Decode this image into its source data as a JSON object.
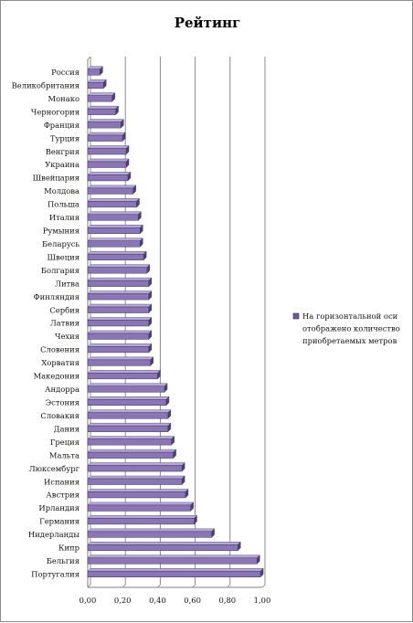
{
  "chart_data": {
    "type": "bar",
    "orientation": "horizontal",
    "title": "Рейтинг",
    "categories": [
      "Россия",
      "Великобритания",
      "Монако",
      "Черногория",
      "Франция",
      "Турция",
      "Венгрия",
      "Украина",
      "Швейцария",
      "Молдова",
      "Польша",
      "Италия",
      "Румыния",
      "Беларусь",
      "Швеция",
      "Болгария",
      "Литва",
      "Финляндия",
      "Сербия",
      "Латвия",
      "Чехия",
      "Словения",
      "Хорватия",
      "Македония",
      "Андорра",
      "Эстония",
      "Словакия",
      "Дания",
      "Греция",
      "Мальта",
      "Люксембург",
      "Испания",
      "Австрия",
      "Ирландия",
      "Германия",
      "Нидерланды",
      "Кипр",
      "Бельгия",
      "Португалия"
    ],
    "series": [
      {
        "name": "На горизонтальной оси отображено количество приобретаемых метров",
        "values": [
          0.07,
          0.09,
          0.14,
          0.16,
          0.19,
          0.2,
          0.22,
          0.22,
          0.23,
          0.26,
          0.28,
          0.29,
          0.3,
          0.3,
          0.32,
          0.34,
          0.35,
          0.35,
          0.35,
          0.35,
          0.35,
          0.35,
          0.36,
          0.4,
          0.44,
          0.45,
          0.46,
          0.46,
          0.48,
          0.49,
          0.54,
          0.54,
          0.56,
          0.59,
          0.61,
          0.71,
          0.86,
          0.97,
          0.99
        ]
      }
    ],
    "xlim": [
      0,
      1.0
    ],
    "xticks": [
      "0,00",
      "0,20",
      "0,40",
      "0,60",
      "0,80",
      "1,00"
    ],
    "xtick_values": [
      0,
      0.2,
      0.4,
      0.6,
      0.8,
      1.0
    ],
    "gridlines": true,
    "legend_position": "right",
    "legend_lines": [
      "На горизонтальной оси",
      "отображено количество",
      "приобретаемых метров"
    ],
    "colors": {
      "bar_face": "#8a76b4",
      "bar_top": "#b7aad6",
      "bar_side": "#4e3f76",
      "grid": "#7f7f7f",
      "axis": "#7f7f7f"
    }
  }
}
